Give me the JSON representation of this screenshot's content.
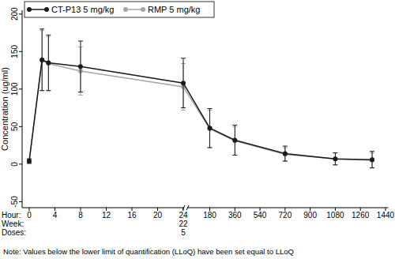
{
  "chart_data": {
    "type": "line",
    "x_label": "Hour:",
    "y_label": "Concentration (ug/ml)",
    "note": "Note: Values below the lower limit of quantification (LLoQ) have been set equal to LLoQ",
    "x": [
      0,
      2,
      3,
      8,
      24,
      180,
      360,
      720,
      1080,
      1344
    ],
    "xlim": [
      -1.1,
      1460
    ],
    "x_break": 24,
    "xticks": [
      0,
      4,
      8,
      12,
      16,
      20,
      24,
      180,
      360,
      540,
      720,
      900,
      1080,
      1260,
      1440
    ],
    "x_rows": [
      {
        "label": "Week:",
        "ticks": [
          {
            "value": 24,
            "label": "22"
          }
        ]
      },
      {
        "label": "Doses:",
        "ticks": [
          {
            "value": 24,
            "label": "5"
          }
        ]
      }
    ],
    "ylim": [
      -58,
      205
    ],
    "yticks": [
      -50,
      0,
      50,
      100,
      150,
      200
    ],
    "grid": false,
    "legend": "top",
    "series": [
      {
        "name": "CT-P13 5 mg/kg",
        "color": "#1a1a1a",
        "marker": "circle",
        "line_style": "solid",
        "values": [
          4,
          139,
          135,
          130,
          108,
          48,
          32,
          14,
          7,
          6
        ],
        "errors": [
          3,
          41,
          37,
          34,
          33,
          26,
          20,
          10,
          8,
          11
        ]
      },
      {
        "name": "RMP 5 mg/kg",
        "color": "#a6a6a6",
        "marker": "circle",
        "line_style": "solid",
        "values": [
          4,
          138,
          134,
          124,
          103,
          47,
          31,
          13,
          7,
          5
        ],
        "errors": [
          3,
          40,
          36,
          32,
          31,
          25,
          19,
          9,
          8,
          10
        ]
      }
    ]
  }
}
